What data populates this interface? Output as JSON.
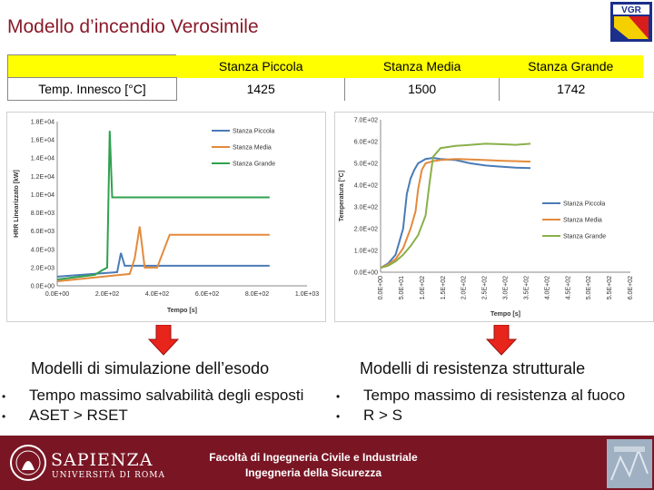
{
  "title": "Modello d’incendio Verosimile",
  "logo_text": "VGR",
  "table": {
    "row_label": "Temp. Innesco [°C]",
    "columns": [
      "Stanza Piccola",
      "Stanza Media",
      "Stanza Grande"
    ],
    "values": [
      "1425",
      "1500",
      "1742"
    ]
  },
  "chart_data": [
    {
      "type": "line",
      "title": "",
      "xlabel": "Tempo [s]",
      "ylabel": "HRR Linearizzato [kW]",
      "xlim": [
        0,
        1000
      ],
      "ylim": [
        0,
        18000
      ],
      "x_tick_labels": [
        "0.0E+00",
        "2.0E+02",
        "4.0E+02",
        "6.0E+02",
        "8.0E+02",
        "1.0E+03"
      ],
      "y_tick_labels": [
        "0.0E+00",
        "2.0E+03",
        "4.0E+03",
        "6.0E+03",
        "8.0E+03",
        "1.0E+04",
        "1.2E+04",
        "1.4E+04",
        "1.6E+04",
        "1.8E+04"
      ],
      "legend_position": "top-right",
      "grid": false,
      "series": [
        {
          "name": "Stanza Piccola",
          "color": "#4a7bb7",
          "x": [
            0,
            240,
            255,
            270,
            285,
            400,
            600,
            850
          ],
          "y": [
            1000,
            1500,
            3600,
            2200,
            2200,
            2200,
            2200,
            2200
          ]
        },
        {
          "name": "Stanza Media",
          "color": "#e38a3c",
          "x": [
            0,
            290,
            310,
            330,
            350,
            400,
            450,
            850
          ],
          "y": [
            500,
            1300,
            3000,
            6500,
            2000,
            2000,
            5600,
            5600
          ]
        },
        {
          "name": "Stanza Grande",
          "color": "#2fa14f",
          "x": [
            0,
            150,
            180,
            200,
            210,
            220,
            400,
            850
          ],
          "y": [
            700,
            1200,
            1700,
            2000,
            17000,
            9700,
            9700,
            9700
          ]
        }
      ]
    },
    {
      "type": "line",
      "title": "",
      "xlabel": "Tempo [s]",
      "ylabel": "Temperatura [°C]",
      "xlim": [
        0,
        1000
      ],
      "ylim": [
        0,
        700
      ],
      "x_tick_labels": [
        "0.0E+00",
        "5.0E+01",
        "1.0E+02",
        "1.5E+02",
        "2.0E+02",
        "2.5E+02",
        "3.0E+02",
        "3.5E+02",
        "4.0E+02",
        "4.5E+02",
        "5.0E+02",
        "5.5E+02",
        "6.0E+02"
      ],
      "y_tick_labels": [
        "0.0E+00",
        "1.0E+02",
        "2.0E+02",
        "3.0E+02",
        "4.0E+02",
        "5.0E+02",
        "6.0E+02",
        "7.0E+02"
      ],
      "legend_position": "right",
      "grid": false,
      "series": [
        {
          "name": "Stanza Piccola",
          "color": "#4a7bb7",
          "x": [
            0,
            30,
            60,
            90,
            105,
            120,
            135,
            150,
            180,
            210,
            240,
            300,
            360,
            420,
            480,
            540,
            600
          ],
          "y": [
            20,
            40,
            80,
            200,
            360,
            430,
            470,
            500,
            520,
            525,
            520,
            515,
            500,
            490,
            485,
            480,
            478
          ]
        },
        {
          "name": "Stanza Media",
          "color": "#e38a3c",
          "x": [
            0,
            30,
            60,
            90,
            120,
            140,
            150,
            165,
            180,
            210,
            240,
            300,
            360,
            420,
            480,
            540,
            600
          ],
          "y": [
            20,
            35,
            60,
            110,
            200,
            280,
            380,
            470,
            500,
            510,
            515,
            520,
            518,
            515,
            512,
            510,
            508
          ]
        },
        {
          "name": "Stanza Grande",
          "color": "#8ab04a",
          "x": [
            0,
            30,
            60,
            90,
            120,
            150,
            180,
            195,
            210,
            240,
            300,
            360,
            420,
            480,
            540,
            600
          ],
          "y": [
            20,
            30,
            50,
            80,
            120,
            170,
            260,
            400,
            530,
            570,
            580,
            585,
            590,
            588,
            585,
            590
          ]
        }
      ]
    }
  ],
  "left_heading": "Modelli di simulazione dell’esodo",
  "right_heading": "Modelli di resistenza strutturale",
  "left_bullets": [
    "Tempo massimo salvabilità degli esposti",
    "ASET > RSET"
  ],
  "right_bullets": [
    "Tempo massimo di resistenza al fuoco",
    "R > S"
  ],
  "bullet_char": "•",
  "footer": {
    "line1": "Facoltà di Ingegneria Civile e Industriale",
    "line2": "Ingegneria della Sicurezza",
    "brand_name": "SAPIENZA",
    "brand_sub": "UNIVERSITÀ DI ROMA"
  },
  "colors": {
    "title": "#8b1a2a",
    "header_bg": "#ffff00",
    "footer_bg": "#7a1624",
    "arrow": "#e8251b"
  }
}
